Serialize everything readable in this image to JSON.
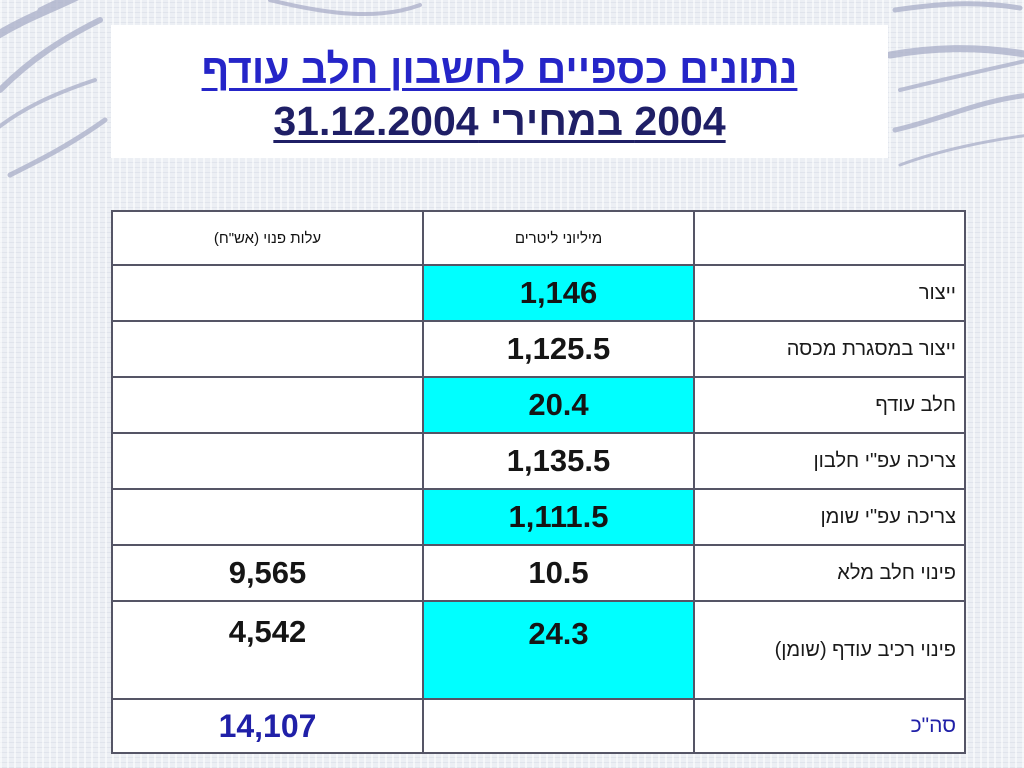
{
  "title": {
    "line1": "נתונים כספיים לחשבון חלב עודף",
    "line2": "2004  במחירי 31.12.2004"
  },
  "table": {
    "headers": {
      "label": "",
      "liters": "מיליוני ליטרים",
      "cost": "עלות פנוי (אש\"ח)"
    },
    "rows": [
      {
        "label": "ייצור",
        "liters": "1,146",
        "cost": "",
        "highlight": true
      },
      {
        "label": "ייצור במסגרת מכסה",
        "liters": "1,125.5",
        "cost": "",
        "highlight": false
      },
      {
        "label": "חלב עודף",
        "liters": "20.4",
        "cost": "",
        "highlight": true
      },
      {
        "label": "צריכה עפ\"י חלבון",
        "liters": "1,135.5",
        "cost": "",
        "highlight": false
      },
      {
        "label": "צריכה עפ\"י שומן",
        "liters": "1,111.5",
        "cost": "",
        "highlight": true
      },
      {
        "label": "פינוי חלב מלא",
        "liters": "10.5",
        "cost": "9,565",
        "highlight": false
      },
      {
        "label": "פינוי רכיב עודף (שומן)",
        "liters": "24.3",
        "cost": "4,542",
        "highlight": true
      },
      {
        "label": "סה\"כ",
        "liters": "",
        "cost": "14,107",
        "highlight": false
      }
    ]
  },
  "colors": {
    "highlight": "#00ffff",
    "title_blue": "#2525c8",
    "title_navy": "#1f1f66",
    "total_blue": "#2020a8"
  }
}
